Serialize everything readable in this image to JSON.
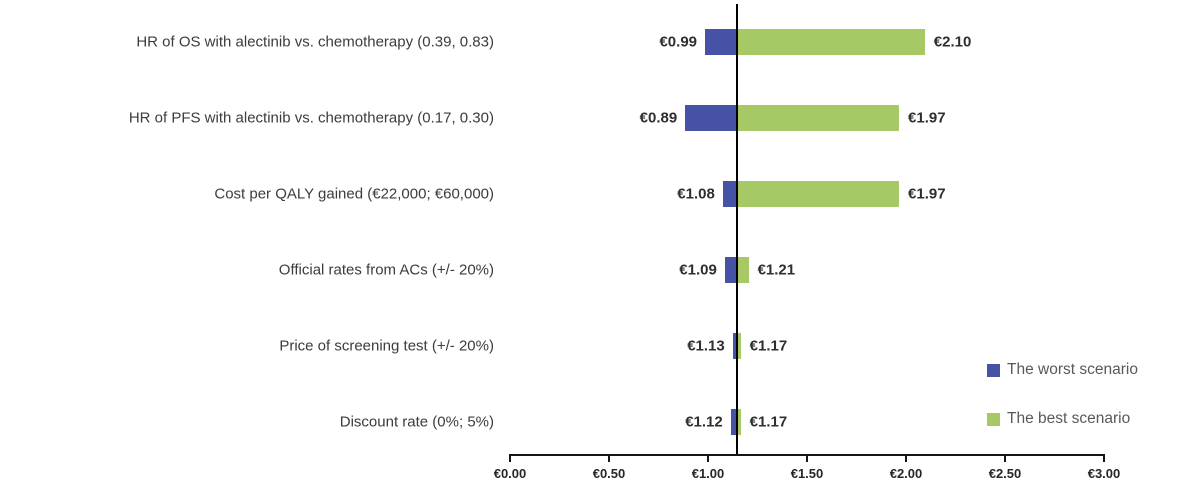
{
  "chart_data": {
    "type": "bar",
    "variant": "tornado",
    "title": "",
    "xlabel": "",
    "ylabel": "",
    "grid": false,
    "legend_position": "bottom-right",
    "currency": "EUR",
    "base_value": 1.15,
    "x_axis": {
      "min": 0,
      "max": 3,
      "tick_step": 0.5,
      "tick_labels": [
        "€0.00",
        "€0.50",
        "€1.00",
        "€1.50",
        "€2.00",
        "€2.50",
        "€3.00"
      ]
    },
    "categories": [
      "HR of OS with alectinib vs. chemotherapy (0.39, 0.83)",
      "HR of PFS with alectinib vs. chemotherapy (0.17, 0.30)",
      "Cost per QALY gained (€22,000; €60,000)",
      "Official rates from ACs (+/- 20%)",
      "Price of screening test (+/- 20%)",
      "Discount rate (0%; 5%)"
    ],
    "series": [
      {
        "name": "The worst scenario",
        "color": "#4652A5",
        "values": [
          0.99,
          0.89,
          1.08,
          1.09,
          1.13,
          1.12
        ],
        "value_labels": [
          "€0.99",
          "€0.89",
          "€1.08",
          "€1.09",
          "€1.13",
          "€1.12"
        ]
      },
      {
        "name": "The best scenario",
        "color": "#A6C865",
        "values": [
          2.1,
          1.97,
          1.97,
          1.21,
          1.17,
          1.17
        ],
        "value_labels": [
          "€2.10",
          "€1.97",
          "€1.97",
          "€1.21",
          "€1.17",
          "€1.17"
        ]
      }
    ]
  },
  "colors": {
    "worst": "#4652A5",
    "best": "#A6C865",
    "axis": "#151515",
    "base_line": "#000000"
  }
}
